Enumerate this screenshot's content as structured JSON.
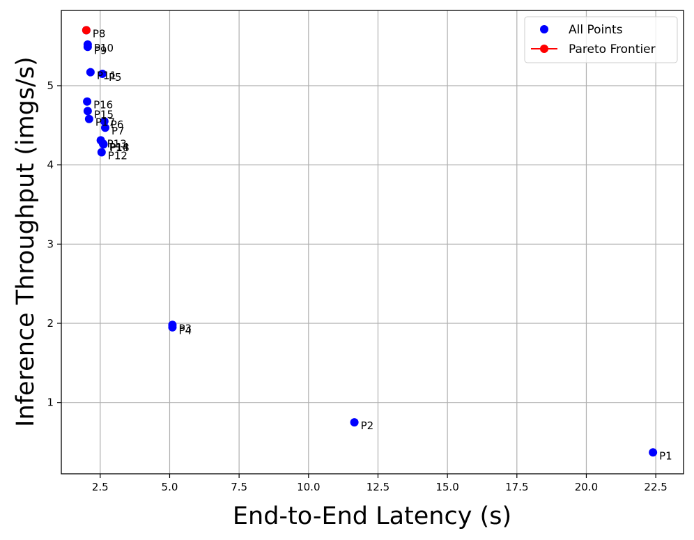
{
  "chart_data": {
    "type": "scatter",
    "title": "",
    "xlabel": "End-to-End Latency (s)",
    "ylabel": "Inference Throughput (imgs/s)",
    "xlim": [
      1.1,
      23.5
    ],
    "ylim": [
      0.1,
      5.95
    ],
    "xticks": [
      2.5,
      5.0,
      7.5,
      10.0,
      12.5,
      15.0,
      17.5,
      20.0,
      22.5
    ],
    "xtick_labels": [
      "2.5",
      "5.0",
      "7.5",
      "10.0",
      "12.5",
      "15.0",
      "17.5",
      "20.0",
      "22.5"
    ],
    "yticks": [
      1,
      2,
      3,
      4,
      5
    ],
    "ytick_labels": [
      "1",
      "2",
      "3",
      "4",
      "5"
    ],
    "grid": true,
    "legend_position": "top-right",
    "series": [
      {
        "name": "All Points",
        "color": "#0000ff",
        "points": [
          {
            "label": "P1",
            "x": 22.4,
            "y": 0.37
          },
          {
            "label": "P2",
            "x": 11.65,
            "y": 0.75
          },
          {
            "label": "P3",
            "x": 5.1,
            "y": 1.98
          },
          {
            "label": "P4",
            "x": 5.1,
            "y": 1.95
          },
          {
            "label": "P5",
            "x": 2.58,
            "y": 5.15
          },
          {
            "label": "P6",
            "x": 2.65,
            "y": 4.55
          },
          {
            "label": "P7",
            "x": 2.68,
            "y": 4.47
          },
          {
            "label": "P8",
            "x": 2.0,
            "y": 5.7
          },
          {
            "label": "P9",
            "x": 2.05,
            "y": 5.49
          },
          {
            "label": "P10",
            "x": 2.05,
            "y": 5.52
          },
          {
            "label": "P11",
            "x": 2.15,
            "y": 5.17
          },
          {
            "label": "P12",
            "x": 2.55,
            "y": 4.16
          },
          {
            "label": "P13",
            "x": 2.52,
            "y": 4.31
          },
          {
            "label": "P14",
            "x": 2.6,
            "y": 4.27
          },
          {
            "label": "P15",
            "x": 2.05,
            "y": 4.68
          },
          {
            "label": "P16",
            "x": 2.03,
            "y": 4.8
          },
          {
            "label": "P17",
            "x": 2.1,
            "y": 4.58
          },
          {
            "label": "P18",
            "x": 2.62,
            "y": 4.26
          }
        ]
      },
      {
        "name": "Pareto Frontier",
        "color": "#ff0000",
        "points": [
          {
            "label": "P8",
            "x": 2.0,
            "y": 5.7
          }
        ]
      }
    ]
  }
}
